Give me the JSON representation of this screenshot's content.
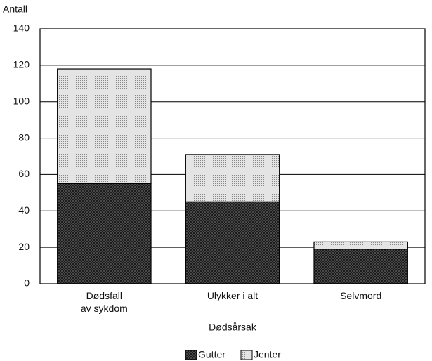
{
  "chart_data": {
    "type": "stacked_bar",
    "y_label": "Antall",
    "x_label": "Dødsårsak",
    "categories": [
      "Dødsfall\nav sykdom",
      "Ulykker i alt",
      "Selvmord"
    ],
    "series": [
      {
        "name": "Gutter",
        "color": "#555555",
        "values": [
          55,
          45,
          19
        ]
      },
      {
        "name": "Jenter",
        "color": "#e4e4e4",
        "values": [
          63,
          26,
          4
        ]
      }
    ],
    "ylim": [
      0,
      140
    ],
    "yticks": [
      0,
      20,
      40,
      60,
      80,
      100,
      120,
      140
    ],
    "grid": true,
    "legend": "bottom"
  }
}
